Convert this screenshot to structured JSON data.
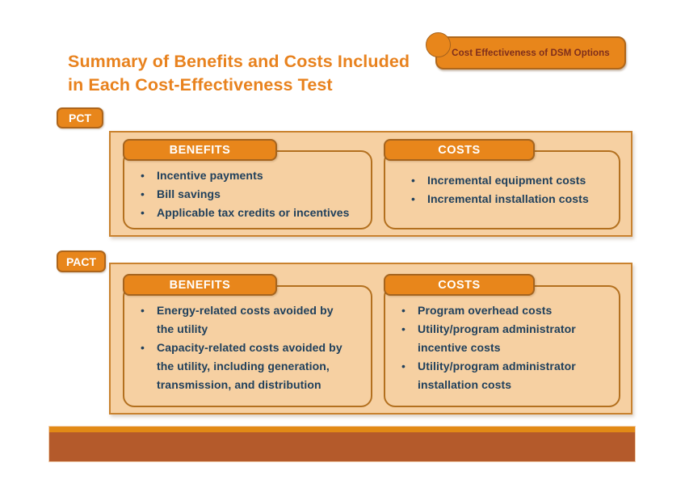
{
  "slide": {
    "badge_label": "Cost Effectiveness of DSM Options",
    "title_line1": "Summary of Benefits and Costs Included",
    "title_line2": "in Each Cost-Effectiveness Test",
    "colors": {
      "accent_orange": "#E8861B",
      "accent_border": "#AF671B",
      "title_orange": "#E8821E",
      "panel_fill": "#F6D0A2",
      "panel_border": "#C9822E",
      "inner_box_border": "#B3701F",
      "bullet_text": "#20405C",
      "badge_text": "#7E2E1C",
      "footer_strip": "#E28A16",
      "footer_bar": "#B45A2B"
    },
    "sections": [
      {
        "tag": "PCT",
        "benefits": {
          "header": "BENEFITS",
          "items": [
            {
              "lines": [
                "Incentive payments"
              ]
            },
            {
              "lines": [
                "Bill savings"
              ]
            },
            {
              "lines": [
                "Applicable tax credits or incentives"
              ]
            }
          ]
        },
        "costs": {
          "header": "COSTS",
          "items": [
            {
              "lines": [
                "Incremental equipment costs"
              ]
            },
            {
              "lines": [
                "Incremental installation costs"
              ]
            }
          ]
        }
      },
      {
        "tag": "PACT",
        "benefits": {
          "header": "BENEFITS",
          "items": [
            {
              "lines": [
                "Energy-related costs avoided by",
                "the utility"
              ]
            },
            {
              "lines": [
                "Capacity-related costs avoided by",
                "the utility, including generation,",
                "transmission, and distribution"
              ]
            }
          ]
        },
        "costs": {
          "header": "COSTS",
          "items": [
            {
              "lines": [
                "Program overhead costs"
              ]
            },
            {
              "lines": [
                "Utility/program administrator",
                "incentive costs"
              ]
            },
            {
              "lines": [
                "Utility/program administrator",
                "installation costs"
              ]
            }
          ]
        }
      }
    ]
  }
}
